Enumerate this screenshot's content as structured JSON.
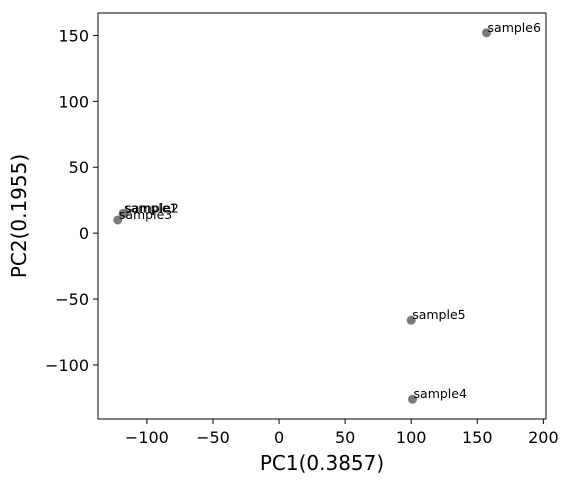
{
  "chart_data": {
    "type": "scatter",
    "title": "",
    "xlabel": "PC1(0.3857)",
    "ylabel": "PC2(0.1955)",
    "xlim": [
      -137,
      202
    ],
    "ylim": [
      -141,
      167
    ],
    "xticks": [
      {
        "value": -100,
        "label": "−100"
      },
      {
        "value": -50,
        "label": "−50"
      },
      {
        "value": 0,
        "label": "0"
      },
      {
        "value": 50,
        "label": "50"
      },
      {
        "value": 100,
        "label": "100"
      },
      {
        "value": 150,
        "label": "150"
      },
      {
        "value": 200,
        "label": "200"
      }
    ],
    "yticks": [
      {
        "value": -100,
        "label": "−100"
      },
      {
        "value": -50,
        "label": "−50"
      },
      {
        "value": 0,
        "label": "0"
      },
      {
        "value": 50,
        "label": "50"
      },
      {
        "value": 100,
        "label": "100"
      },
      {
        "value": 150,
        "label": "150"
      }
    ],
    "grid": false,
    "marker_color": "#7a7a7a",
    "points": [
      {
        "label": "sample1",
        "x": -118,
        "y": 15
      },
      {
        "label": "sample2",
        "x": -117,
        "y": 15
      },
      {
        "label": "sample3",
        "x": -122,
        "y": 10
      },
      {
        "label": "sample4",
        "x": 101,
        "y": -126
      },
      {
        "label": "sample5",
        "x": 100,
        "y": -66
      },
      {
        "label": "sample6",
        "x": 157,
        "y": 152
      }
    ]
  }
}
